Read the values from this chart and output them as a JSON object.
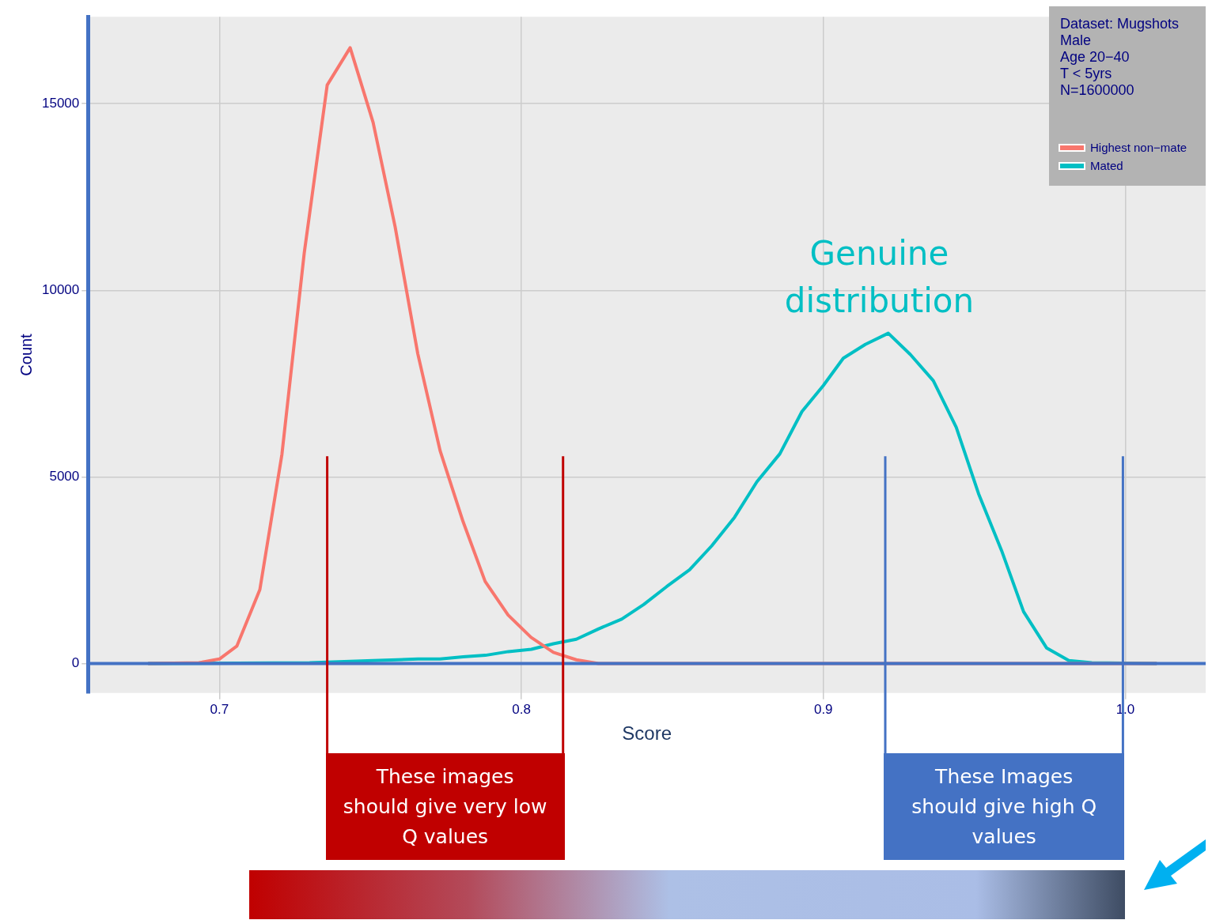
{
  "chart_data": {
    "type": "line",
    "xlabel": "Score",
    "ylabel": "Count",
    "legend_title": "Dataset: Mugshots\nMale\nAge 20−40\nT < 5yrs\nN=1600000",
    "legend": "top right",
    "grid": true,
    "marker": "none",
    "line_style": "solid",
    "xlim": [
      0.6565,
      1.0266
    ],
    "ylim": [
      -790,
      17330
    ],
    "xticks": [
      0.7,
      0.8,
      0.9,
      {
        "value": 1.0,
        "label": "1.0"
      }
    ],
    "yticks": [
      0,
      5000,
      10000,
      15000
    ],
    "series": [
      {
        "name": "Highest non−mate",
        "color": "#f8766d",
        "x": [
          0.6764,
          0.6932,
          0.7,
          0.7058,
          0.7134,
          0.7207,
          0.7281,
          0.7357,
          0.7433,
          0.7509,
          0.7582,
          0.7657,
          0.7731,
          0.7807,
          0.788,
          0.7956,
          0.8032,
          0.8106,
          0.8182,
          0.8255,
          0.8332,
          1.0104
        ],
        "values": [
          0,
          20,
          120,
          470,
          1980,
          5600,
          11000,
          15500,
          16500,
          14500,
          11700,
          8300,
          5700,
          3800,
          2200,
          1300,
          700,
          300,
          100,
          0,
          0,
          0
        ]
      },
      {
        "name": "Mated",
        "color": "#00bfc4",
        "x": [
          0.6764,
          0.7299,
          0.7509,
          0.7658,
          0.7731,
          0.7807,
          0.7881,
          0.7957,
          0.8033,
          0.8106,
          0.8182,
          0.8256,
          0.8332,
          0.8405,
          0.8481,
          0.8557,
          0.863,
          0.8706,
          0.878,
          0.8856,
          0.8929,
          0.9,
          0.9066,
          0.9139,
          0.9215,
          0.9288,
          0.9364,
          0.944,
          0.9514,
          0.959,
          0.9663,
          0.9739,
          0.9813,
          0.9889,
          1.0104
        ],
        "values": [
          0,
          20,
          80,
          120,
          120,
          180,
          220,
          320,
          380,
          530,
          650,
          930,
          1190,
          1580,
          2060,
          2510,
          3150,
          3920,
          4870,
          5620,
          6750,
          7450,
          8180,
          8550,
          8850,
          8280,
          7580,
          6330,
          4550,
          3030,
          1390,
          420,
          80,
          20,
          0
        ]
      }
    ],
    "ref_lines": [
      {
        "axis": "y",
        "value": 0,
        "color": "#4472c4"
      },
      {
        "axis": "x",
        "value": 0.7357,
        "label": "These images should give very low Q values",
        "color": "#c00000"
      },
      {
        "axis": "x",
        "value": 0.8138,
        "color": "#c00000"
      },
      {
        "axis": "x",
        "value": 0.9205,
        "label": "These Images should give high Q values",
        "color": "#4472c4"
      },
      {
        "axis": "x",
        "value": 0.9992,
        "color": "#4472c4"
      }
    ],
    "annotations": [
      "Genuine distribution"
    ]
  }
}
